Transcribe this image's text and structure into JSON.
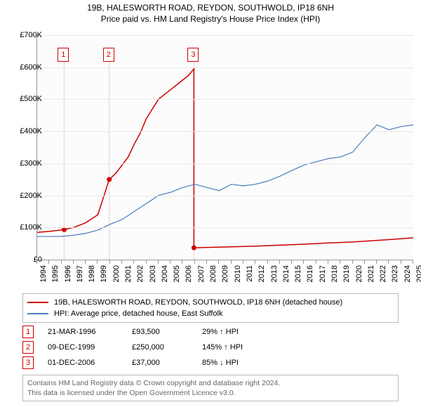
{
  "title": {
    "line1": "19B, HALESWORTH ROAD, REYDON, SOUTHWOLD, IP18 6NH",
    "line2": "Price paid vs. HM Land Registry's House Price Index (HPI)",
    "fontsize": 12
  },
  "chart": {
    "type": "line",
    "background_color": "#fcfcfc",
    "grid_color": "#e8e8e8",
    "axis_color": "#999999",
    "text_color": "#000000",
    "ylim": [
      0,
      700000
    ],
    "ytick_step": 100000,
    "ytick_labels": [
      "£0",
      "£100K",
      "£200K",
      "£300K",
      "£400K",
      "£500K",
      "£600K",
      "£700K"
    ],
    "xlim": [
      1994,
      2025
    ],
    "xticks": [
      1994,
      1995,
      1996,
      1997,
      1998,
      1999,
      2000,
      2001,
      2002,
      2003,
      2004,
      2005,
      2006,
      2007,
      2008,
      2009,
      2010,
      2011,
      2012,
      2013,
      2014,
      2015,
      2016,
      2017,
      2018,
      2019,
      2020,
      2021,
      2022,
      2023,
      2024,
      2025
    ],
    "series": [
      {
        "name": "price_paid",
        "label": "19B, HALESWORTH ROAD, REYDON, SOUTHWOLD, IP18 6NH (detached house)",
        "color": "#cc0000",
        "line_width": 1.5,
        "points_x": [
          1994,
          1995,
          1996.22,
          1996.22,
          1997,
          1998,
          1999,
          1999.94,
          1999.94,
          2000.5,
          2001,
          2001.5,
          2002,
          2002.5,
          2003,
          2003.5,
          2004,
          2004.5,
          2005,
          2005.5,
          2006,
          2006.5,
          2006.92,
          2006.92,
          2008,
          2010,
          2012,
          2014,
          2016,
          2018,
          2020,
          2022,
          2024,
          2025
        ],
        "points_y": [
          85000,
          88000,
          93500,
          93500,
          100000,
          115000,
          140000,
          250000,
          250000,
          270000,
          295000,
          320000,
          360000,
          395000,
          440000,
          470000,
          500000,
          515000,
          530000,
          545000,
          560000,
          575000,
          595000,
          37000,
          38000,
          40000,
          42000,
          45000,
          48000,
          52000,
          55000,
          60000,
          65000,
          68000
        ],
        "dots": [
          {
            "x": 1996.22,
            "y": 93500
          },
          {
            "x": 1999.94,
            "y": 250000
          },
          {
            "x": 2006.92,
            "y": 37000
          }
        ]
      },
      {
        "name": "hpi",
        "label": "HPI: Average price, detached house, East Suffolk",
        "color": "#4a7ebb",
        "line_width": 1.2,
        "points_x": [
          1994,
          1995,
          1996,
          1997,
          1998,
          1999,
          2000,
          2001,
          2002,
          2003,
          2004,
          2005,
          2006,
          2007,
          2008,
          2009,
          2010,
          2011,
          2012,
          2013,
          2014,
          2015,
          2016,
          2017,
          2018,
          2019,
          2020,
          2021,
          2022,
          2023,
          2024,
          2025
        ],
        "points_y": [
          72000,
          72000,
          72500,
          76000,
          82000,
          92000,
          110000,
          125000,
          150000,
          175000,
          200000,
          210000,
          225000,
          235000,
          225000,
          215000,
          235000,
          230000,
          235000,
          245000,
          260000,
          278000,
          295000,
          305000,
          315000,
          320000,
          335000,
          380000,
          420000,
          405000,
          415000,
          420000
        ]
      }
    ],
    "markers": [
      {
        "num": "1",
        "x": 1996.22,
        "y_top": 660000
      },
      {
        "num": "2",
        "x": 1999.94,
        "y_top": 660000
      },
      {
        "num": "3",
        "x": 2006.92,
        "y_top": 660000
      }
    ],
    "marker_line_color": "#eecccc",
    "marker_border_color": "#cc0000"
  },
  "legend": {
    "border_color": "#bbbbbb",
    "fontsize": 11
  },
  "events": [
    {
      "num": "1",
      "date": "21-MAR-1996",
      "price": "£93,500",
      "hpi": "29% ↑ HPI"
    },
    {
      "num": "2",
      "date": "09-DEC-1999",
      "price": "£250,000",
      "hpi": "145% ↑ HPI"
    },
    {
      "num": "3",
      "date": "01-DEC-2006",
      "price": "£37,000",
      "hpi": "85% ↓ HPI"
    }
  ],
  "footer": {
    "line1": "Contains HM Land Registry data © Crown copyright and database right 2024.",
    "line2": "This data is licensed under the Open Government Licence v3.0.",
    "text_color": "#666666",
    "border_color": "#bbbbbb"
  }
}
